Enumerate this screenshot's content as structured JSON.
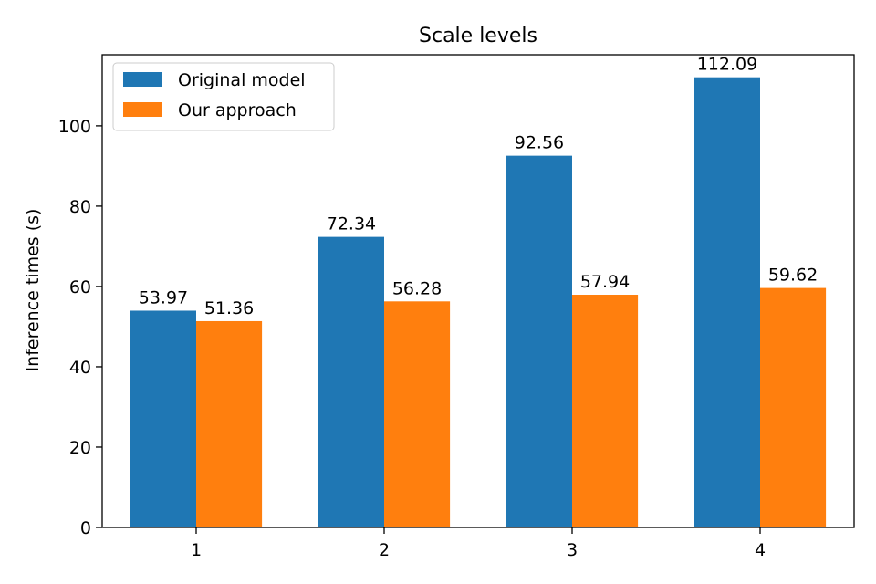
{
  "chart_data": {
    "type": "bar",
    "title": "Scale levels",
    "xlabel": "",
    "ylabel": "Inference times (s)",
    "categories": [
      "1",
      "2",
      "3",
      "4"
    ],
    "series": [
      {
        "name": "Original model",
        "color": "#1f77b4",
        "values": [
          53.97,
          72.34,
          92.56,
          112.09
        ],
        "labels": [
          "53.97",
          "72.34",
          "92.56",
          "112.09"
        ]
      },
      {
        "name": "Our approach",
        "color": "#ff7f0e",
        "values": [
          51.36,
          56.28,
          57.94,
          59.62
        ],
        "labels": [
          "51.36",
          "56.28",
          "57.94",
          "59.62"
        ]
      }
    ],
    "ylim": [
      0,
      117.7
    ],
    "yticks": [
      0,
      20,
      40,
      60,
      80,
      100
    ],
    "grid": false,
    "legend": "top-left"
  }
}
